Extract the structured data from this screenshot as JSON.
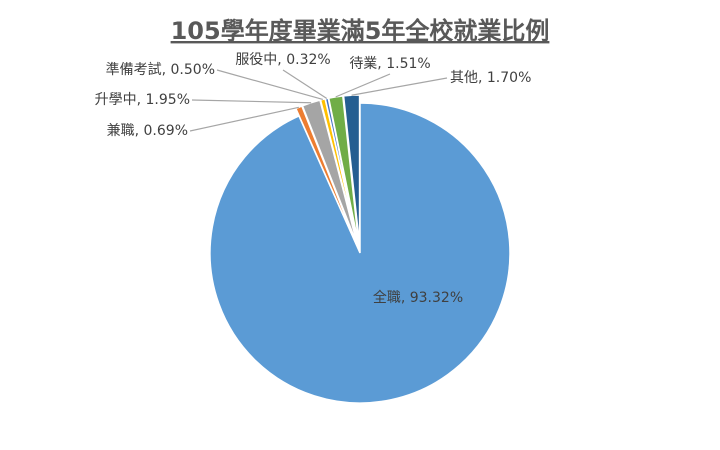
{
  "chart_data": {
    "type": "pie",
    "title": "105學年度畢業滿5年全校就業比例",
    "labels": [
      "全職, 93.32%",
      "兼職, 0.69%",
      "升學中, 1.95%",
      "準備考試, 0.50%",
      "服役中, 0.32%",
      "待業, 1.51%",
      "其他, 1.70%"
    ],
    "values": [
      93.32,
      0.69,
      1.95,
      0.5,
      0.32,
      1.51,
      1.7
    ],
    "colors": [
      "#5b9bd5",
      "#ed7d31",
      "#a5a5a5",
      "#ffc000",
      "#4472c4",
      "#70ad47",
      "#255e91"
    ]
  }
}
